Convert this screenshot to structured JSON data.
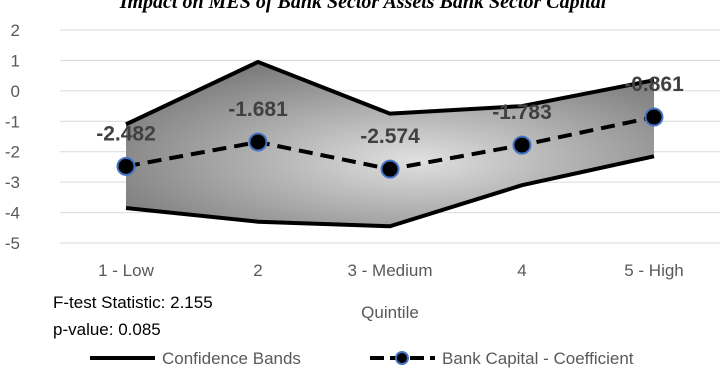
{
  "chart_data": {
    "type": "line",
    "title": "Impact on MES of Bank Sector Assets Bank Sector Capital",
    "xlabel": "Quintile",
    "ylabel": "",
    "categories": [
      "1 - Low",
      "2",
      "3 - Medium",
      "4",
      "5 - High"
    ],
    "ylim": [
      -5,
      2
    ],
    "yticks": [
      2,
      1,
      0,
      -1,
      -2,
      -3,
      -4,
      -5
    ],
    "grid": true,
    "legend_position": "bottom",
    "series": [
      {
        "name": "Bank Capital - Coefficient",
        "values": [
          -2.482,
          -1.681,
          -2.574,
          -1.783,
          -0.861
        ],
        "labels": [
          "-2.482",
          "-1.681",
          "-2.574",
          "-1.783",
          "-0.861"
        ]
      },
      {
        "name": "Confidence Bands",
        "upper": [
          -1.1,
          0.95,
          -0.75,
          -0.5,
          0.35
        ],
        "lower": [
          -3.85,
          -4.3,
          -4.45,
          -3.1,
          -2.15
        ]
      }
    ],
    "annotations": [
      "F-test Statistic: 2.155",
      "p-value: 0.085"
    ],
    "colors": {
      "band_line": "#000000",
      "coef_line": "#000000",
      "marker_fill": "#000000",
      "marker_edge": "#4472c4",
      "grid": "#d9d9d9",
      "band_light": "#e0e0e0",
      "band_dark": "#6b6b6b"
    }
  }
}
